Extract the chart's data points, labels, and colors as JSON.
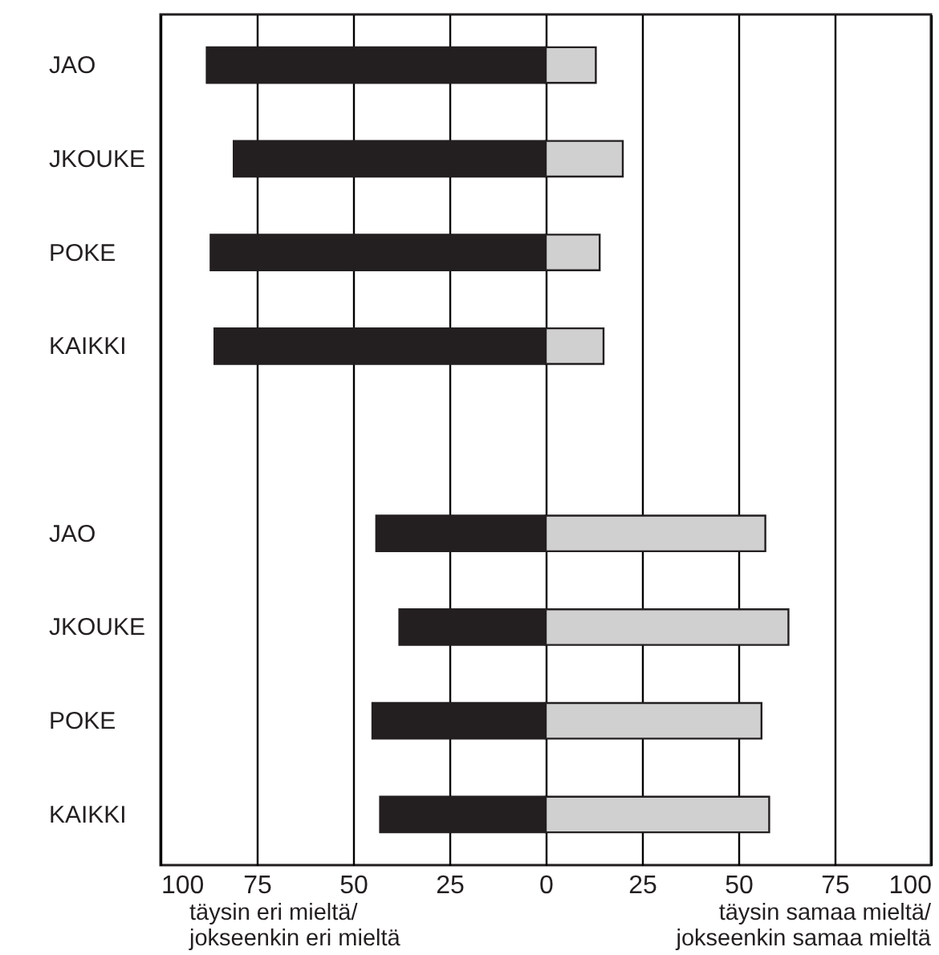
{
  "chart_data": {
    "type": "bar",
    "orientation": "horizontal",
    "stacked": true,
    "categories": [
      "JAO",
      "JKOUKE",
      "POKE",
      "KAIKKI",
      null,
      "JAO",
      "JKOUKE",
      "POKE",
      "KAIKKI"
    ],
    "series": [
      {
        "color": "#231f20",
        "values": [
          -88,
          -81,
          -87,
          -86,
          null,
          -44,
          -38,
          -45,
          -43
        ]
      },
      {
        "color": "#d0d0d0",
        "values": [
          13,
          20,
          14,
          15,
          null,
          57,
          63,
          56,
          58
        ]
      }
    ],
    "xlim": [
      -100,
      100
    ],
    "xticks": [
      {
        "value": -100,
        "label": "100"
      },
      {
        "value": -75,
        "label": "75"
      },
      {
        "value": -50,
        "label": "50"
      },
      {
        "value": -25,
        "label": "25"
      },
      0,
      25,
      50,
      75,
      100
    ],
    "grid": "x",
    "legend": false,
    "annotations": [
      "täysin eri mieltä/\njokseenkin eri mieltä",
      "täysin samaa mieltä/\njokseenkin samaa mieltä"
    ]
  }
}
